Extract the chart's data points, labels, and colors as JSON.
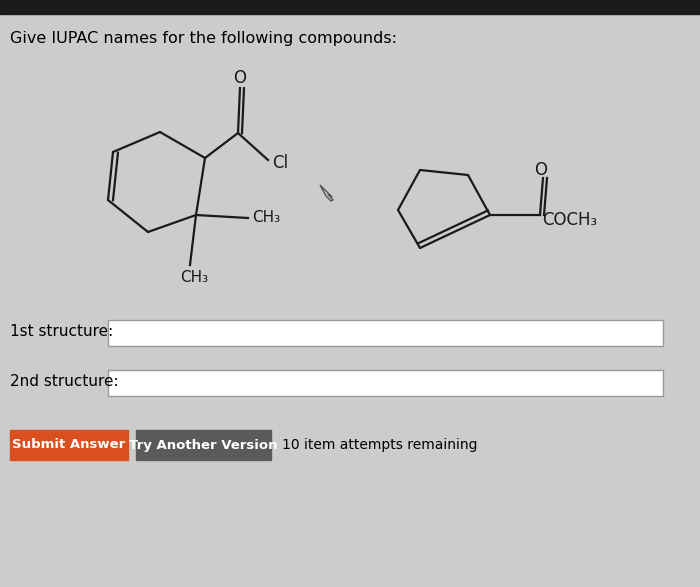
{
  "bg_color": "#cccccc",
  "top_bar_color": "#1a1a1a",
  "title_text": "Give IUPAC names for the following compounds:",
  "title_fontsize": 11.5,
  "label_1st": "1st structure:",
  "label_2nd": "2nd structure:",
  "submit_color": "#d94f1e",
  "try_color": "#5a5a5a",
  "submit_text": "Submit Answer",
  "try_text": "Try Another Version",
  "remaining_text": "10 item attempts remaining",
  "line_color": "#1a1a1a",
  "line_width": 1.6
}
